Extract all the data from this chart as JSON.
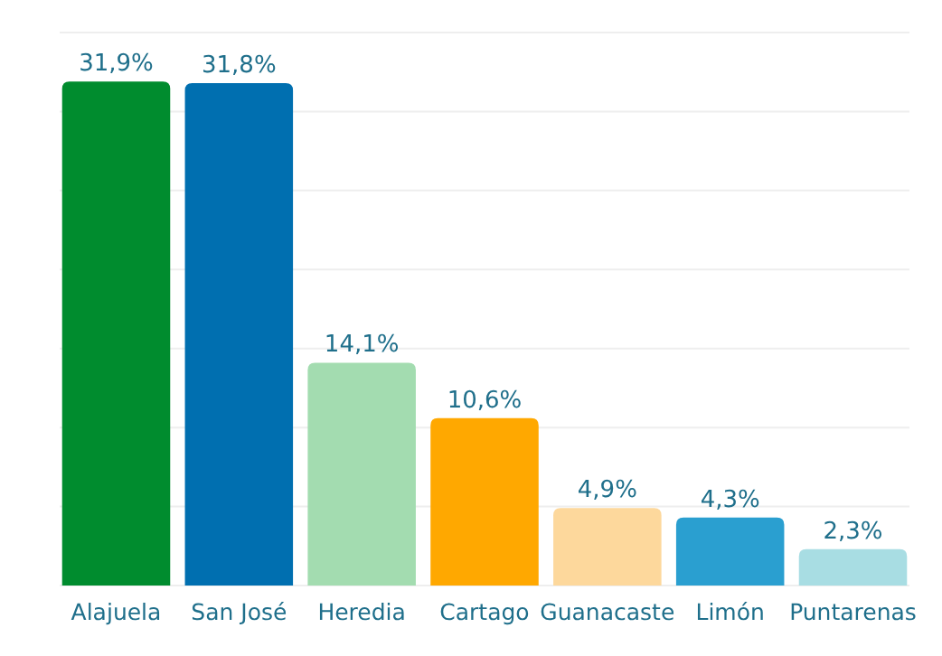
{
  "chart_data": {
    "type": "bar",
    "categories": [
      "Alajuela",
      "San José",
      "Heredia",
      "Cartago",
      "Guanacaste",
      "Limón",
      "Puntarenas"
    ],
    "values": [
      31.9,
      31.8,
      14.1,
      10.6,
      4.9,
      4.3,
      2.3
    ],
    "colors": [
      "#008c2e",
      "#006fb0",
      "#a3dcb0",
      "#ffa800",
      "#fdd89c",
      "#2a9fd0",
      "#a8dde3"
    ],
    "value_labels": [
      "31,9%",
      "31,8%",
      "14,1%",
      "10,6%",
      "4,9%",
      "4,3%",
      "2,3%"
    ],
    "ylim": [
      0,
      35
    ],
    "yticks": [
      {
        "value": 0,
        "label": null
      },
      {
        "value": 5,
        "label": null
      },
      {
        "value": 10,
        "label": null
      },
      {
        "value": 15,
        "label": null
      },
      {
        "value": 20,
        "label": null
      },
      {
        "value": 25,
        "label": null
      },
      {
        "value": 30,
        "label": null
      },
      {
        "value": 35,
        "label": null
      }
    ],
    "grid": "y",
    "tick_labels": "x"
  }
}
